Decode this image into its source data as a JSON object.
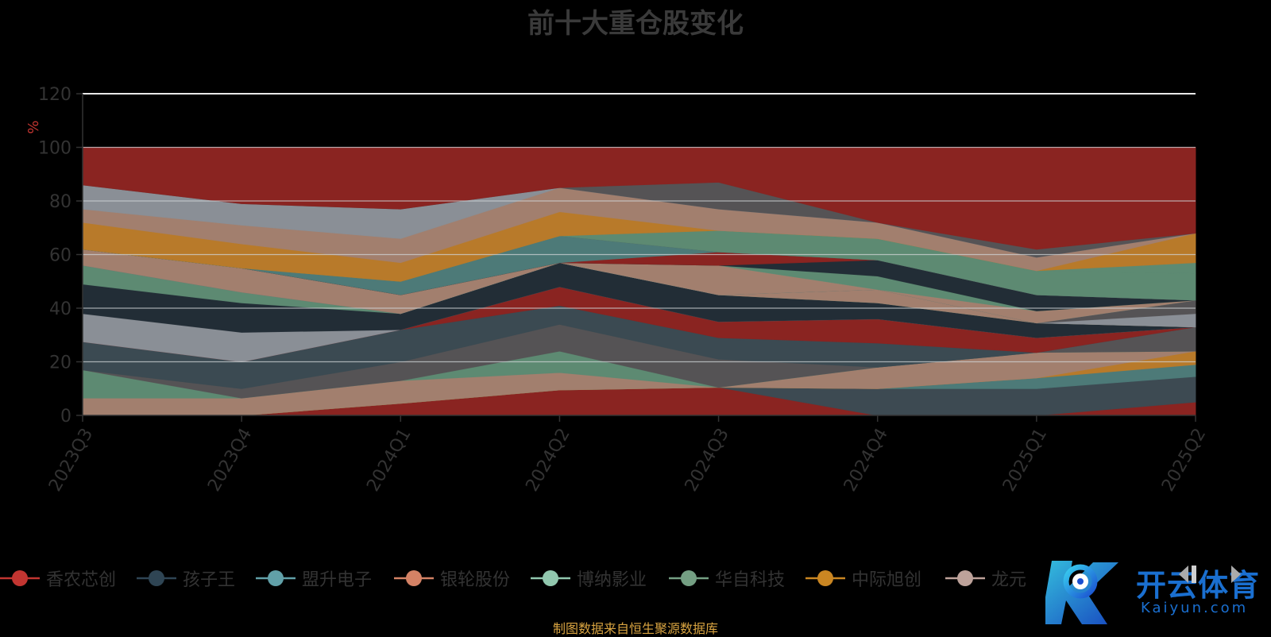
{
  "title": "前十大重仓股变化",
  "source_note": "制图数据来自恒生聚源数据库",
  "watermark": {
    "cn": "开云体育",
    "en": "Kaiyun.com"
  },
  "chart_data": {
    "type": "area",
    "stacked": true,
    "ylabel": "%",
    "ylim": [
      0,
      120
    ],
    "yticks": [
      0,
      20,
      40,
      60,
      80,
      100,
      120
    ],
    "grid": true,
    "legend_position": "bottom",
    "categories": [
      "2023Q3",
      "2023Q4",
      "2024Q1",
      "2024Q2",
      "2024Q3",
      "2024Q4",
      "2025Q1",
      "2025Q2"
    ],
    "layers": [
      {
        "name": "",
        "color": "#8a2421",
        "top": [
          0,
          0,
          4.5,
          9.5,
          10.5,
          0,
          0,
          5
        ]
      },
      {
        "name": "",
        "color": "#3d4a52",
        "top": [
          0,
          0,
          4.5,
          9.5,
          10.5,
          10,
          10,
          14.5
        ]
      },
      {
        "name": "",
        "color": "#4d7a78",
        "top": [
          0,
          0,
          4.5,
          9.5,
          10.5,
          10,
          14,
          19
        ]
      },
      {
        "name": "",
        "color": "#b87a2a",
        "top": [
          0,
          0,
          4.5,
          9.5,
          10.5,
          10,
          14,
          24
        ]
      },
      {
        "name": "",
        "color": "#a27f6e",
        "top": [
          6.5,
          6.5,
          13,
          16,
          10.5,
          18,
          23.5,
          24
        ]
      },
      {
        "name": "",
        "color": "#5d8a72",
        "top": [
          17,
          6.5,
          13,
          24,
          10.5,
          18,
          23.5,
          24
        ]
      },
      {
        "name": "",
        "color": "#555355",
        "top": [
          17,
          10,
          20,
          34,
          21,
          18,
          23.5,
          33
        ]
      },
      {
        "name": "",
        "color": "#3b4a52",
        "top": [
          27.5,
          20,
          32,
          41,
          29,
          27,
          23.5,
          33
        ]
      },
      {
        "name": "",
        "color": "#8a2421",
        "top": [
          27.5,
          20,
          32,
          48,
          35,
          36,
          29,
          33
        ]
      },
      {
        "name": "",
        "color": "#8a8f96",
        "top": [
          38,
          31,
          32,
          48,
          35,
          36,
          29,
          33
        ]
      },
      {
        "name": "",
        "color": "#222d36",
        "top": [
          49,
          42,
          38,
          57,
          45,
          42,
          34.5,
          33
        ]
      },
      {
        "name": "",
        "color": "#5d8a72",
        "top": [
          56,
          46,
          38,
          57,
          45,
          42,
          34.5,
          33
        ]
      },
      {
        "name": "",
        "color": "#a27f6e",
        "top": [
          56,
          46,
          38,
          57,
          45,
          47,
          34.5,
          33
        ]
      },
      {
        "name": "",
        "color": "#8a8f96",
        "top": [
          56,
          46,
          38,
          57,
          45,
          47,
          34.5,
          38
        ]
      },
      {
        "name": "",
        "color": "#555355",
        "top": [
          56,
          46,
          38,
          57,
          45,
          47,
          34.5,
          43
        ]
      },
      {
        "name": "",
        "color": "#4d7a78",
        "top": [
          56,
          46,
          38,
          57,
          45,
          47,
          34.5,
          43
        ]
      },
      {
        "name": "",
        "color": "#a27f6e",
        "top": [
          62,
          55,
          45,
          57,
          56,
          47,
          39,
          43
        ]
      },
      {
        "name": "",
        "color": "#b87a2a",
        "top": [
          62,
          55,
          45,
          57,
          56,
          47,
          39,
          43
        ]
      },
      {
        "name": "",
        "color": "#8a8f96",
        "top": [
          62,
          55,
          45,
          57,
          56,
          47,
          39,
          43
        ]
      },
      {
        "name": "",
        "color": "#5d8a72",
        "top": [
          62,
          55,
          45,
          57,
          56,
          52,
          39,
          43
        ]
      },
      {
        "name": "",
        "color": "#222d36",
        "top": [
          62,
          55,
          45,
          57,
          56,
          58,
          45,
          43
        ]
      },
      {
        "name": "",
        "color": "#8a2421",
        "top": [
          62,
          55,
          45,
          57,
          61,
          58,
          45,
          43
        ]
      },
      {
        "name": "",
        "color": "#4d7a78",
        "top": [
          62,
          55,
          50,
          67,
          61,
          58,
          45,
          43
        ]
      },
      {
        "name": "",
        "color": "#3d4a52",
        "top": [
          62,
          55,
          50,
          67,
          61,
          58,
          45,
          43
        ]
      },
      {
        "name": "",
        "color": "#5d8a72",
        "top": [
          62,
          55,
          50,
          67,
          69,
          66,
          54,
          53
        ]
      },
      {
        "name": "",
        "color": "#5d8a72",
        "top": [
          62,
          55,
          50,
          67,
          69,
          66,
          54,
          57
        ]
      },
      {
        "name": "",
        "color": "#b87a2a",
        "top": [
          72,
          64,
          57,
          76,
          69,
          66,
          54,
          68
        ]
      },
      {
        "name": "",
        "color": "#a27f6e",
        "top": [
          77,
          71,
          66,
          85,
          77,
          72,
          59,
          68
        ]
      },
      {
        "name": "",
        "color": "#8a8f96",
        "top": [
          86,
          79,
          77,
          85,
          77,
          72,
          59,
          68
        ]
      },
      {
        "name": "",
        "color": "#555355",
        "top": [
          86,
          79,
          77,
          85,
          87,
          72,
          62,
          68
        ]
      },
      {
        "name": "",
        "color": "#8a2421",
        "top": [
          100,
          100,
          100,
          100,
          100,
          100,
          100,
          100
        ]
      }
    ],
    "legend": [
      {
        "name": "香农芯创",
        "color": "#c23531"
      },
      {
        "name": "孩子王",
        "color": "#2f4554"
      },
      {
        "name": "盟升电子",
        "color": "#61a0a8"
      },
      {
        "name": "银轮股份",
        "color": "#d48265"
      },
      {
        "name": "博纳影业",
        "color": "#91c7ae"
      },
      {
        "name": "华自科技",
        "color": "#749f83"
      },
      {
        "name": "中际旭创",
        "color": "#ca8622"
      },
      {
        "name": "龙元",
        "color": "#bda29a"
      }
    ]
  }
}
